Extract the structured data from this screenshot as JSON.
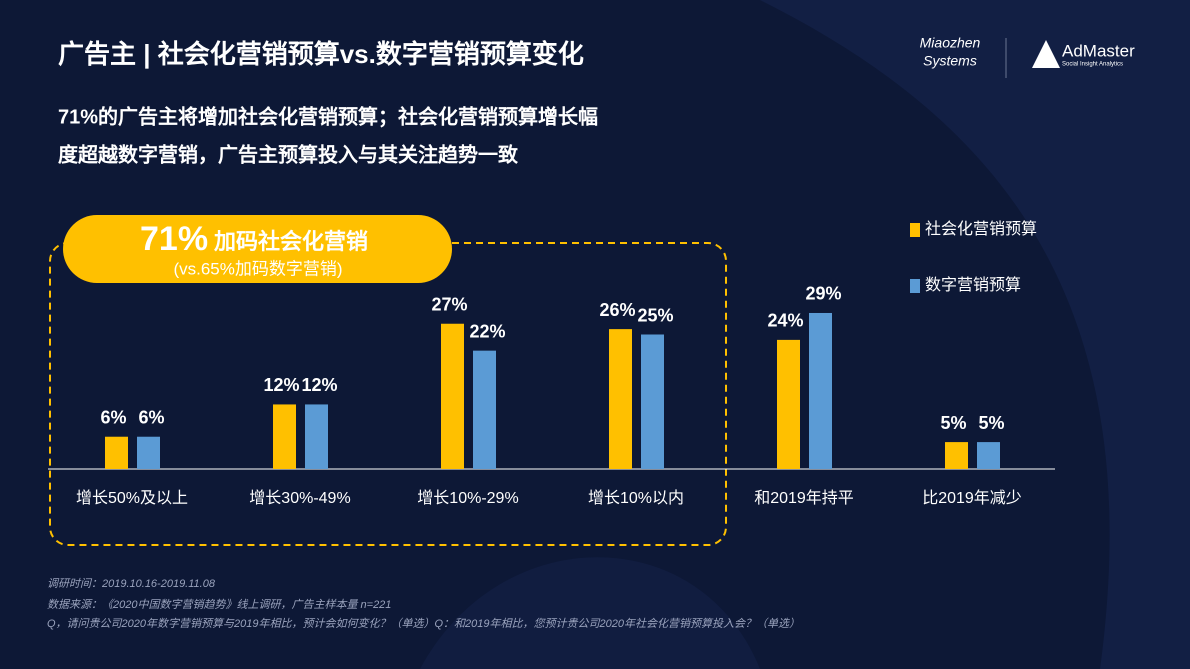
{
  "header": {
    "title": "广告主 | 社会化营销预算vs.数字营销预算变化",
    "subtitle": [
      "71%的广告主将增加社会化营销预算；社会化营销预算增长幅",
      "度超越数字营销，广告主预算投入与其关注趋势一致"
    ]
  },
  "logos": {
    "miaozhen": [
      "Miaozhen",
      "Systems"
    ],
    "admaster": "AdMaster",
    "admaster_tagline": "Social Insight Analytics"
  },
  "callout": {
    "headline": "71%",
    "headline_text": "加码社会化营销",
    "note": "(vs.65%加码数字营销)"
  },
  "chart_data": {
    "type": "bar",
    "categories": [
      "增长50%及以上",
      "增长30%-49%",
      "增长10%-29%",
      "增长10%以内",
      "和2019年持平",
      "比2019年减少"
    ],
    "series": [
      {
        "name": "社会化营销预算",
        "color": "#FFC000",
        "values": [
          6,
          12,
          27,
          26,
          24,
          5
        ],
        "value_labels": [
          "6%",
          "12%",
          "27%",
          "26%",
          "24%",
          "5%"
        ]
      },
      {
        "name": "数字营销预算",
        "color": "#5B9BD5",
        "values": [
          6,
          12,
          22,
          25,
          29,
          5
        ],
        "value_labels": [
          "6%",
          "12%",
          "22%",
          "25%",
          "29%",
          "5%"
        ]
      }
    ]
  },
  "footnotes": [
    "调研时间：2019.10.16-2019.11.08",
    "数据来源：《2020中国数字营销趋势》线上调研，广告主样本量 n=221",
    "Q，请问贵公司2020年数字营销预算与2019年相比，预计会如何变化？（单选）Q：和2019年相比，您预计贵公司2020年社会化营销预算投入会？（单选）"
  ]
}
